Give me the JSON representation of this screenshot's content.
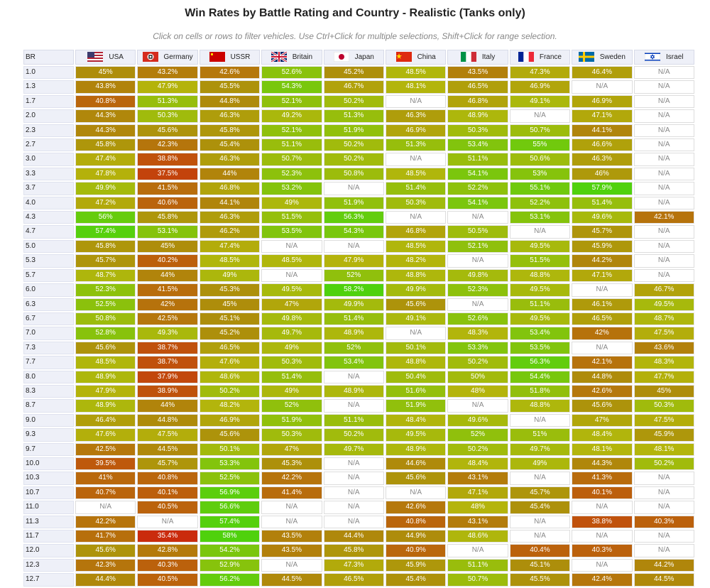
{
  "title": "Win Rates by Battle Rating and Country - Realistic (Tanks only)",
  "subtitle": "Click on cells or rows to filter vehicles. Use Ctrl+Click for multiple selections, Shift+Click for range selection.",
  "table": {
    "header": [
      "BR",
      "USA",
      "Germany",
      "USSR",
      "Britain",
      "Japan",
      "China",
      "Italy",
      "France",
      "Sweden",
      "Israel"
    ],
    "rows": [
      [
        "1.0",
        "45%",
        "43.2%",
        "42.6%",
        "52.6%",
        "45.2%",
        "48.5%",
        "43.5%",
        "47.3%",
        "46.4%",
        "N/A"
      ],
      [
        "1.3",
        "43.8%",
        "47.9%",
        "45.5%",
        "54.3%",
        "46.7%",
        "48.1%",
        "46.5%",
        "46.9%",
        "N/A",
        "N/A"
      ],
      [
        "1.7",
        "40.8%",
        "51.3%",
        "44.8%",
        "52.1%",
        "50.2%",
        "N/A",
        "46.8%",
        "49.1%",
        "46.9%",
        "N/A"
      ],
      [
        "2.0",
        "44.3%",
        "50.3%",
        "46.3%",
        "49.2%",
        "51.3%",
        "46.3%",
        "48.9%",
        "N/A",
        "47.1%",
        "N/A"
      ],
      [
        "2.3",
        "44.3%",
        "45.6%",
        "45.8%",
        "52.1%",
        "51.9%",
        "46.9%",
        "50.3%",
        "50.7%",
        "44.1%",
        "N/A"
      ],
      [
        "2.7",
        "45.8%",
        "42.3%",
        "45.4%",
        "51.1%",
        "50.2%",
        "51.3%",
        "53.4%",
        "55%",
        "46.6%",
        "N/A"
      ],
      [
        "3.0",
        "47.4%",
        "38.8%",
        "46.3%",
        "50.7%",
        "50.2%",
        "N/A",
        "51.1%",
        "50.6%",
        "46.3%",
        "N/A"
      ],
      [
        "3.3",
        "47.8%",
        "37.5%",
        "44%",
        "52.3%",
        "50.8%",
        "48.5%",
        "54.1%",
        "53%",
        "46%",
        "N/A"
      ],
      [
        "3.7",
        "49.9%",
        "41.5%",
        "46.8%",
        "53.2%",
        "N/A",
        "51.4%",
        "52.2%",
        "55.1%",
        "57.9%",
        "N/A"
      ],
      [
        "4.0",
        "47.2%",
        "40.6%",
        "44.1%",
        "49%",
        "51.9%",
        "50.3%",
        "54.1%",
        "52.2%",
        "51.4%",
        "N/A"
      ],
      [
        "4.3",
        "56%",
        "45.8%",
        "46.3%",
        "51.5%",
        "56.3%",
        "N/A",
        "N/A",
        "53.1%",
        "49.6%",
        "42.1%"
      ],
      [
        "4.7",
        "57.4%",
        "53.1%",
        "46.2%",
        "53.5%",
        "54.3%",
        "46.8%",
        "50.5%",
        "N/A",
        "45.7%",
        "N/A"
      ],
      [
        "5.0",
        "45.8%",
        "45%",
        "47.4%",
        "N/A",
        "N/A",
        "48.5%",
        "52.1%",
        "49.5%",
        "45.9%",
        "N/A"
      ],
      [
        "5.3",
        "45.7%",
        "40.2%",
        "48.5%",
        "48.5%",
        "47.9%",
        "48.2%",
        "N/A",
        "51.5%",
        "44.2%",
        "N/A"
      ],
      [
        "5.7",
        "48.7%",
        "44%",
        "49%",
        "N/A",
        "52%",
        "48.8%",
        "49.8%",
        "48.8%",
        "47.1%",
        "N/A"
      ],
      [
        "6.0",
        "52.3%",
        "41.5%",
        "45.3%",
        "49.5%",
        "58.2%",
        "49.9%",
        "52.3%",
        "49.5%",
        "N/A",
        "46.7%"
      ],
      [
        "6.3",
        "52.5%",
        "42%",
        "45%",
        "47%",
        "49.9%",
        "45.6%",
        "N/A",
        "51.1%",
        "46.1%",
        "49.5%"
      ],
      [
        "6.7",
        "50.8%",
        "42.5%",
        "45.1%",
        "49.8%",
        "51.4%",
        "49.1%",
        "52.6%",
        "49.5%",
        "46.5%",
        "48.7%"
      ],
      [
        "7.0",
        "52.8%",
        "49.3%",
        "45.2%",
        "49.7%",
        "48.9%",
        "N/A",
        "48.3%",
        "53.4%",
        "42%",
        "47.5%"
      ],
      [
        "7.3",
        "45.6%",
        "38.7%",
        "46.5%",
        "49%",
        "52%",
        "50.1%",
        "53.3%",
        "53.5%",
        "N/A",
        "43.6%"
      ],
      [
        "7.7",
        "48.5%",
        "38.7%",
        "47.6%",
        "50.3%",
        "53.4%",
        "48.8%",
        "50.2%",
        "56.3%",
        "42.1%",
        "48.3%"
      ],
      [
        "8.0",
        "48.9%",
        "37.9%",
        "48.6%",
        "51.4%",
        "N/A",
        "50.4%",
        "50%",
        "54.4%",
        "44.8%",
        "47.7%"
      ],
      [
        "8.3",
        "47.9%",
        "38.9%",
        "50.2%",
        "49%",
        "48.9%",
        "51.6%",
        "48%",
        "51.8%",
        "42.6%",
        "45%"
      ],
      [
        "8.7",
        "48.9%",
        "44%",
        "48.2%",
        "52%",
        "N/A",
        "51.9%",
        "N/A",
        "48.8%",
        "45.6%",
        "50.3%"
      ],
      [
        "9.0",
        "46.4%",
        "44.8%",
        "46.9%",
        "51.9%",
        "51.1%",
        "48.4%",
        "49.6%",
        "N/A",
        "47%",
        "47.5%"
      ],
      [
        "9.3",
        "47.6%",
        "47.5%",
        "45.6%",
        "50.3%",
        "50.2%",
        "49.5%",
        "52%",
        "51%",
        "48.4%",
        "45.9%"
      ],
      [
        "9.7",
        "42.5%",
        "44.5%",
        "50.1%",
        "47%",
        "49.7%",
        "48.9%",
        "50.2%",
        "49.7%",
        "48.1%",
        "48.1%"
      ],
      [
        "10.0",
        "39.5%",
        "45.7%",
        "53.3%",
        "45.3%",
        "N/A",
        "44.6%",
        "48.4%",
        "49%",
        "44.3%",
        "50.2%"
      ],
      [
        "10.3",
        "41%",
        "40.8%",
        "52.5%",
        "42.2%",
        "N/A",
        "45.6%",
        "43.1%",
        "N/A",
        "41.3%",
        "N/A"
      ],
      [
        "10.7",
        "40.7%",
        "40.1%",
        "56.9%",
        "41.4%",
        "N/A",
        "N/A",
        "47.1%",
        "45.7%",
        "40.1%",
        "N/A"
      ],
      [
        "11.0",
        "N/A",
        "40.5%",
        "56.6%",
        "N/A",
        "N/A",
        "42.6%",
        "48%",
        "45.4%",
        "N/A",
        "N/A"
      ],
      [
        "11.3",
        "42.2%",
        "N/A",
        "57.4%",
        "N/A",
        "N/A",
        "40.8%",
        "43.1%",
        "N/A",
        "38.8%",
        "40.3%"
      ],
      [
        "11.7",
        "41.7%",
        "35.4%",
        "58%",
        "43.5%",
        "44.4%",
        "44.9%",
        "48.6%",
        "N/A",
        "N/A",
        "N/A"
      ],
      [
        "12.0",
        "45.6%",
        "42.8%",
        "54.2%",
        "43.5%",
        "45.8%",
        "40.9%",
        "N/A",
        "40.4%",
        "40.3%",
        "N/A"
      ],
      [
        "12.3",
        "42.3%",
        "40.3%",
        "52.9%",
        "N/A",
        "47.3%",
        "45.9%",
        "51.1%",
        "45.1%",
        "N/A",
        "44.2%"
      ],
      [
        "12.7",
        "44.4%",
        "40.5%",
        "56.2%",
        "44.5%",
        "46.5%",
        "45.4%",
        "50.7%",
        "45.5%",
        "42.4%",
        "44.5%"
      ]
    ]
  }
}
